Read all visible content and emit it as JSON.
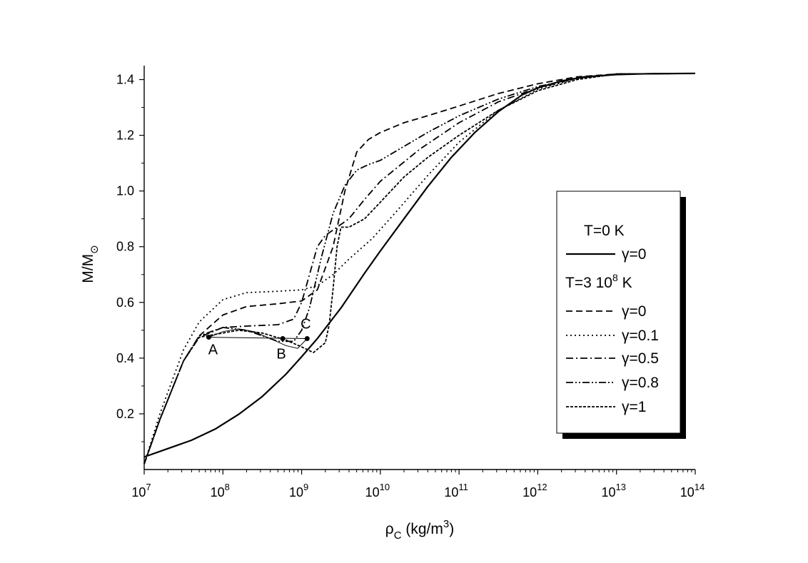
{
  "chart_data": {
    "type": "line",
    "xlabel": {
      "base": "ρ",
      "sub": "C",
      "unit_pre": " (kg/m",
      "unit_sup": "3",
      "unit_post": ")"
    },
    "ylabel": {
      "base": "M/M",
      "sub": "⊙"
    },
    "x_scale": "log",
    "xlim": [
      10000000.0,
      100000000000000.0
    ],
    "ylim": [
      0,
      1.45
    ],
    "x_ticks": [
      {
        "exp": 7,
        "base": "10",
        "sup": "7"
      },
      {
        "exp": 8,
        "base": "10",
        "sup": "8"
      },
      {
        "exp": 9,
        "base": "10",
        "sup": "9"
      },
      {
        "exp": 10,
        "base": "10",
        "sup": "10"
      },
      {
        "exp": 11,
        "base": "10",
        "sup": "11"
      },
      {
        "exp": 12,
        "base": "10",
        "sup": "12"
      },
      {
        "exp": 13,
        "base": "10",
        "sup": "13"
      },
      {
        "exp": 14,
        "base": "10",
        "sup": "14"
      }
    ],
    "y_ticks": [
      {
        "value": 0.2,
        "label": "0.2"
      },
      {
        "value": 0.4,
        "label": "0.4"
      },
      {
        "value": 0.6,
        "label": "0.6"
      },
      {
        "value": 0.8,
        "label": "0.8"
      },
      {
        "value": 1.0,
        "label": "1.0"
      },
      {
        "value": 1.2,
        "label": "1.2"
      },
      {
        "value": 1.4,
        "label": "1.4"
      }
    ],
    "legend": {
      "placement": "right",
      "headers": [
        {
          "text": "T=0 K"
        },
        {
          "base": "T=3 10",
          "sup": "8",
          "post": " K"
        }
      ]
    },
    "series": [
      {
        "name": "γ=0",
        "group": "T=0 K",
        "dash": "none",
        "width": 2.2,
        "x": [
          7.0,
          7.3,
          7.6,
          7.9,
          8.2,
          8.5,
          8.8,
          9.0,
          9.2,
          9.5,
          9.8,
          10.0,
          10.3,
          10.6,
          10.9,
          11.2,
          11.5,
          11.8,
          12.0,
          12.3,
          12.6,
          13.0,
          13.4,
          14.0
        ],
        "y": [
          0.045,
          0.075,
          0.105,
          0.145,
          0.198,
          0.262,
          0.342,
          0.405,
          0.47,
          0.58,
          0.705,
          0.785,
          0.9,
          1.015,
          1.12,
          1.21,
          1.285,
          1.345,
          1.37,
          1.395,
          1.41,
          1.418,
          1.421,
          1.422
        ]
      },
      {
        "name": "γ=0",
        "group": "T=3 10^8 K",
        "dash": "9,5",
        "width": 1.8,
        "x": [
          7.0,
          7.2,
          7.5,
          7.7,
          8.0,
          8.3,
          8.7,
          9.0,
          9.2,
          9.4,
          9.55,
          9.7,
          9.85,
          10.0,
          10.3,
          10.6,
          11.0,
          11.5,
          12.0,
          12.5,
          13.0,
          14.0
        ],
        "y": [
          0.02,
          0.18,
          0.39,
          0.48,
          0.555,
          0.585,
          0.595,
          0.605,
          0.645,
          0.8,
          1.0,
          1.14,
          1.185,
          1.21,
          1.245,
          1.27,
          1.305,
          1.35,
          1.385,
          1.41,
          1.42,
          1.422
        ]
      },
      {
        "name": "γ=0.1",
        "group": "T=3 10^8 K",
        "dash": "2,4",
        "width": 1.8,
        "x": [
          7.0,
          7.2,
          7.5,
          7.7,
          8.0,
          8.3,
          8.7,
          9.0,
          9.2,
          9.4,
          9.6,
          9.9,
          10.2,
          10.6,
          11.0,
          11.5,
          12.0,
          12.5,
          13.0,
          14.0
        ],
        "y": [
          0.02,
          0.2,
          0.43,
          0.53,
          0.61,
          0.635,
          0.64,
          0.645,
          0.66,
          0.7,
          0.755,
          0.83,
          0.925,
          1.055,
          1.175,
          1.29,
          1.365,
          1.405,
          1.42,
          1.422
        ]
      },
      {
        "name": "γ=0.5",
        "group": "T=3 10^8 K",
        "dash": "10,4,2,4",
        "width": 1.8,
        "x": [
          7.0,
          7.2,
          7.5,
          7.7,
          8.0,
          8.3,
          8.7,
          8.9,
          9.0,
          9.1,
          9.2,
          9.3,
          9.45,
          9.6,
          9.8,
          10.0,
          10.5,
          11.0,
          11.5,
          12.0,
          12.5,
          13.0,
          14.0
        ],
        "y": [
          0.02,
          0.18,
          0.39,
          0.475,
          0.51,
          0.515,
          0.52,
          0.54,
          0.6,
          0.7,
          0.8,
          0.84,
          0.87,
          0.9,
          0.97,
          1.035,
          1.15,
          1.245,
          1.32,
          1.37,
          1.405,
          1.42,
          1.422
        ]
      },
      {
        "name": "γ=0.8",
        "group": "T=3 10^8 K",
        "dash": "10,3,2,3,2,3",
        "width": 1.8,
        "x": [
          7.0,
          7.2,
          7.5,
          7.7,
          8.0,
          8.3,
          8.7,
          8.9,
          9.0,
          9.1,
          9.25,
          9.4,
          9.55,
          9.7,
          9.85,
          10.0,
          10.3,
          10.6,
          11.0,
          11.5,
          12.0,
          12.5,
          13.0,
          14.0
        ],
        "y": [
          0.02,
          0.18,
          0.39,
          0.48,
          0.51,
          0.5,
          0.46,
          0.46,
          0.5,
          0.58,
          0.76,
          0.92,
          1.02,
          1.075,
          1.095,
          1.11,
          1.16,
          1.21,
          1.27,
          1.33,
          1.375,
          1.405,
          1.42,
          1.422
        ]
      },
      {
        "name": "γ=1",
        "group": "T=3 10^8 K",
        "dash": "4,2",
        "width": 1.8,
        "x": [
          7.0,
          7.2,
          7.5,
          7.7,
          8.0,
          8.2,
          8.5,
          8.8,
          9.0,
          9.15,
          9.3,
          9.35,
          9.4,
          9.45,
          9.5,
          9.6,
          9.8,
          10.0,
          10.3,
          10.6,
          11.0,
          11.5,
          12.0,
          12.5,
          13.0,
          14.0
        ],
        "y": [
          0.02,
          0.18,
          0.39,
          0.475,
          0.49,
          0.5,
          0.49,
          0.465,
          0.44,
          0.42,
          0.455,
          0.52,
          0.65,
          0.8,
          0.87,
          0.87,
          0.9,
          0.96,
          1.05,
          1.12,
          1.2,
          1.29,
          1.36,
          1.4,
          1.42,
          1.422
        ]
      }
    ],
    "transition_points": [
      {
        "label": "A",
        "x": 7.82,
        "y": 0.475
      },
      {
        "label": "B",
        "x": 8.76,
        "y": 0.47
      },
      {
        "label": "C",
        "x": 9.07,
        "y": 0.47
      }
    ],
    "transition_curve": {
      "x": [
        7.82,
        8.0,
        8.2,
        8.4,
        8.6,
        8.8,
        8.95,
        9.07
      ],
      "y": [
        0.475,
        0.495,
        0.505,
        0.495,
        0.47,
        0.445,
        0.435,
        0.47
      ]
    }
  }
}
